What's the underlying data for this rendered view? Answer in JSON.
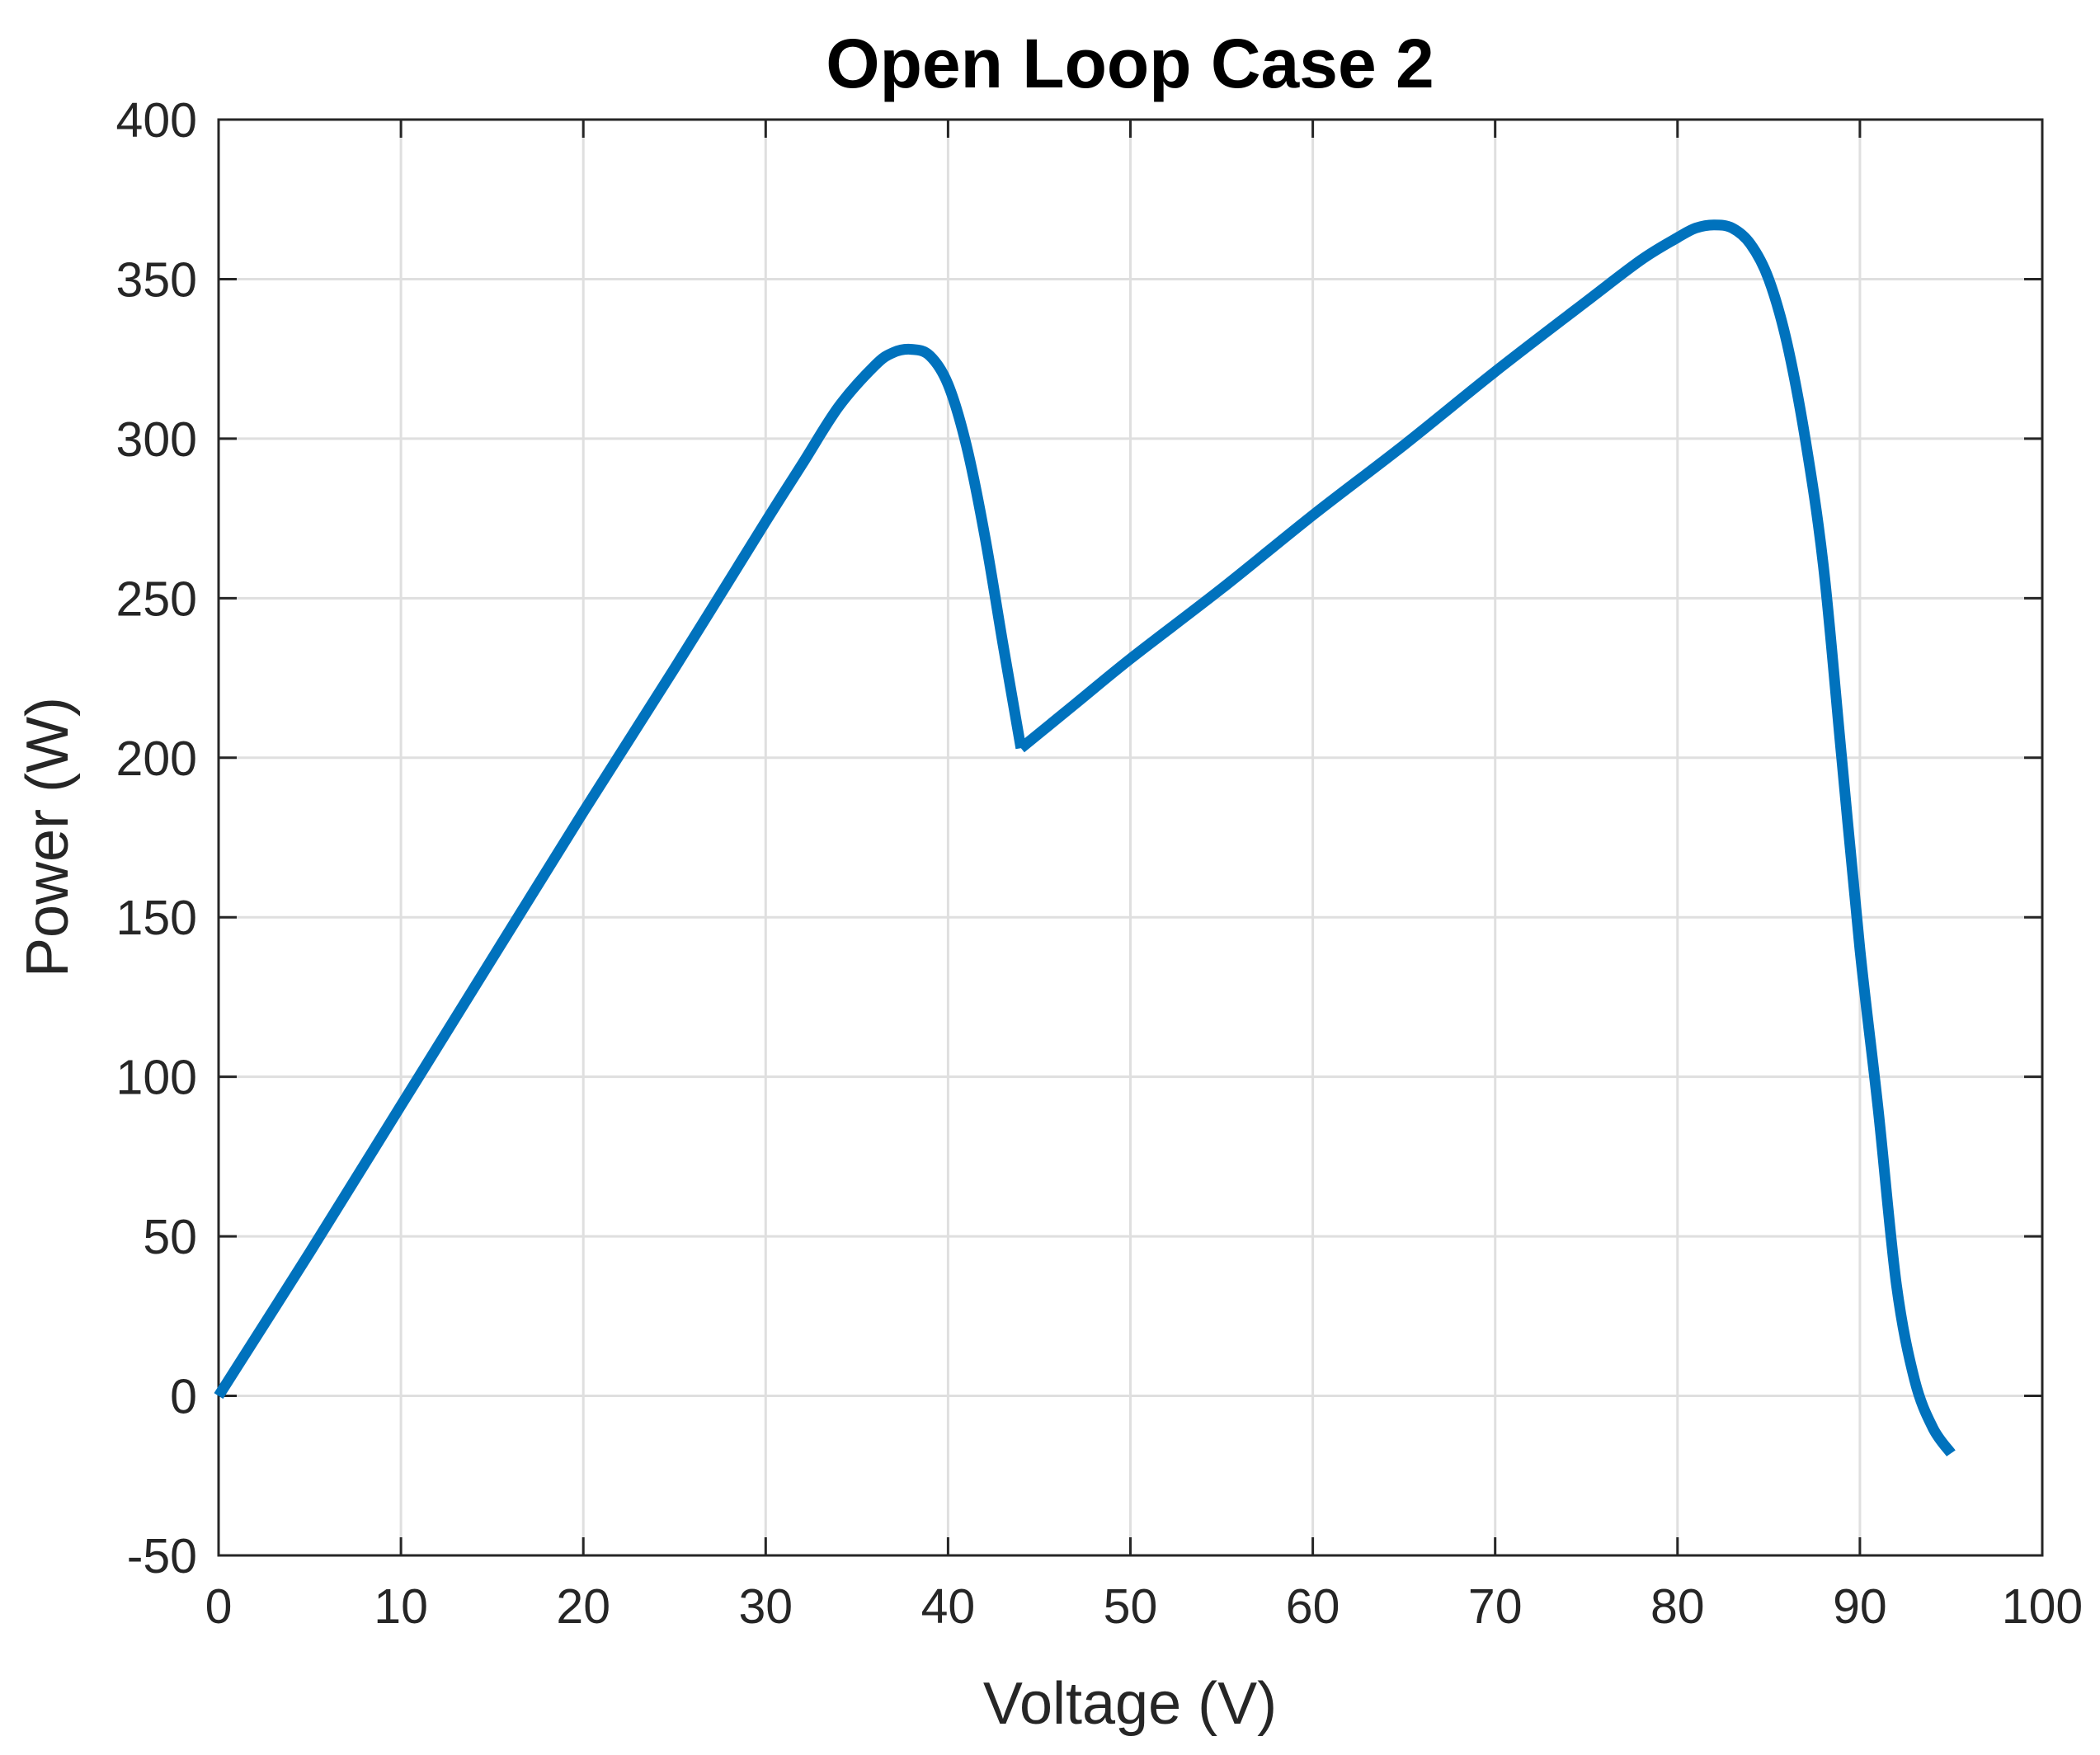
{
  "chart_data": {
    "type": "line",
    "title": "Open Loop Case 2",
    "xlabel": "Voltage (V)",
    "ylabel": "Power (W)",
    "xlim": [
      0,
      100
    ],
    "ylim": [
      -50,
      400
    ],
    "xticks": [
      0,
      10,
      20,
      30,
      40,
      50,
      60,
      70,
      80,
      90,
      100
    ],
    "yticks": [
      -50,
      0,
      50,
      100,
      150,
      200,
      250,
      300,
      350,
      400
    ],
    "grid": true,
    "legend": "none",
    "series": [
      {
        "color": "#0072bd",
        "x": [
          0,
          5,
          10,
          15,
          20,
          25,
          30,
          32,
          34,
          36,
          37,
          38,
          39,
          40,
          41,
          42,
          43,
          44,
          47,
          50,
          55,
          60,
          65,
          70,
          75,
          78,
          80,
          81,
          82,
          83,
          84,
          85,
          86,
          87,
          88,
          89,
          90,
          91,
          92,
          93,
          94,
          95
        ],
        "y": [
          0,
          45,
          91,
          137,
          183,
          228,
          274,
          292,
          310,
          323,
          327,
          328,
          326,
          317,
          298,
          270,
          236,
          203,
          217,
          231,
          253,
          276,
          298,
          321,
          343,
          356,
          363,
          366,
          367,
          366,
          361,
          350,
          330,
          300,
          260,
          200,
          140,
          90,
          35,
          5,
          -10,
          -18
        ]
      }
    ]
  }
}
